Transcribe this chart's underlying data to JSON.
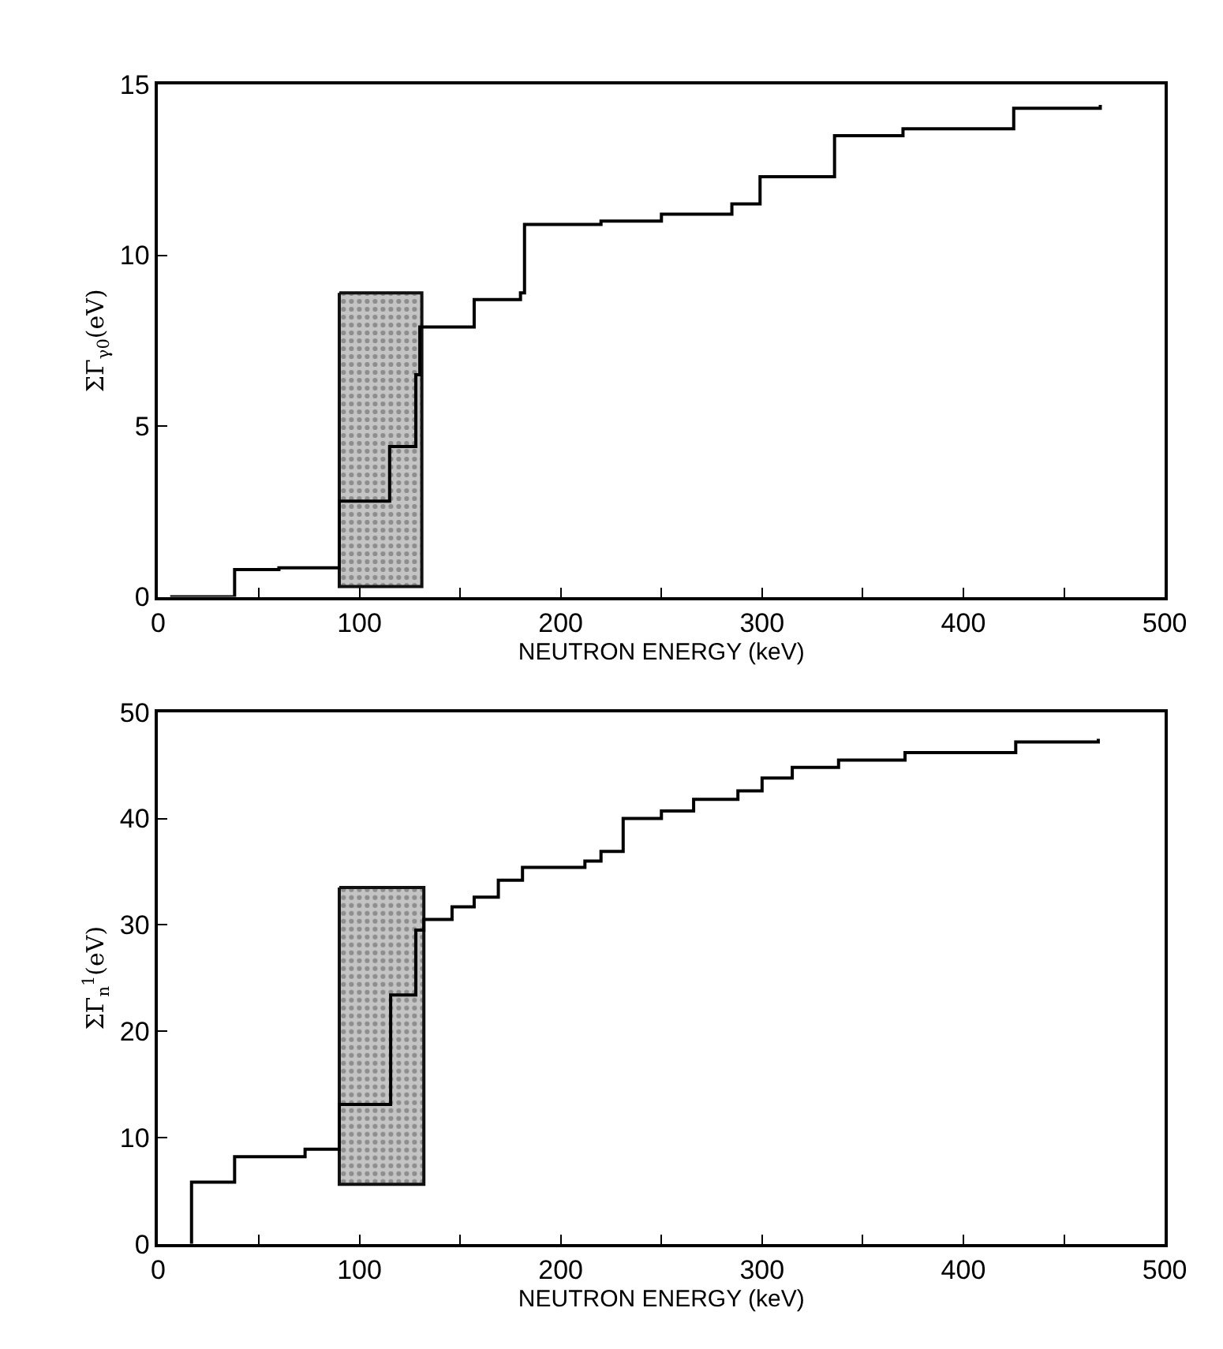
{
  "chart_data": [
    {
      "type": "step",
      "xlabel": "NEUTRON ENERGY (keV)",
      "ylabel": "ΣΓ$_{γ0}$(eV)",
      "xlim": [
        0,
        500
      ],
      "ylim": [
        0,
        15
      ],
      "xticks": [
        0,
        {
          "value": 50,
          "label": null
        },
        100,
        {
          "value": 150,
          "label": null
        },
        200,
        {
          "value": 250,
          "label": null
        },
        300,
        {
          "value": 350,
          "label": null
        },
        400,
        {
          "value": 450,
          "label": null
        },
        500
      ],
      "yticks": [
        0,
        5,
        10,
        15
      ],
      "marker": "none",
      "line_style": "solid",
      "series": [
        {
          "type": "area",
          "color": "#c4c4c4",
          "x": [
            90,
            131
          ],
          "values": [
            null,
            null
          ],
          "lower": [
            0.3,
            0.3
          ],
          "upper": [
            8.9,
            8.9
          ]
        },
        {
          "color": "#000000",
          "x": [
            6,
            38,
            60,
            90,
            115,
            128,
            130,
            157,
            180,
            182,
            220,
            250,
            285,
            299,
            336,
            370,
            425,
            468
          ],
          "values": [
            0,
            0.8,
            0.85,
            2.8,
            4.4,
            6.5,
            7.9,
            8.7,
            8.9,
            10.9,
            11.0,
            11.2,
            11.5,
            12.3,
            13.5,
            13.7,
            14.3,
            14.4
          ]
        }
      ]
    },
    {
      "type": "step",
      "xlabel": "NEUTRON ENERGY (keV)",
      "ylabel": "ΣΓ$_{n}$$^{1}$(eV)",
      "xlim": [
        0,
        500
      ],
      "ylim": [
        0,
        50
      ],
      "xticks": [
        0,
        {
          "value": 50,
          "label": null
        },
        100,
        {
          "value": 150,
          "label": null
        },
        200,
        {
          "value": 250,
          "label": null
        },
        300,
        {
          "value": 350,
          "label": null
        },
        400,
        {
          "value": 450,
          "label": null
        },
        500
      ],
      "yticks": [
        0,
        10,
        20,
        30,
        40,
        50
      ],
      "marker": "none",
      "line_style": "solid",
      "series": [
        {
          "type": "area",
          "color": "#c4c4c4",
          "x": [
            90,
            132
          ],
          "values": [
            null,
            null
          ],
          "lower": [
            5.6,
            5.6
          ],
          "upper": [
            33.5,
            33.5
          ]
        },
        {
          "color": "#000000",
          "x": [
            16.6,
            16.6,
            38,
            73,
            90,
            115.5,
            128,
            132,
            146,
            157,
            169,
            181,
            212,
            220,
            231,
            250,
            266,
            288,
            300,
            315,
            338,
            371,
            426,
            467
          ],
          "values": [
            0,
            5.8,
            8.2,
            8.9,
            13.1,
            23.4,
            29.5,
            30.5,
            31.7,
            32.6,
            34.2,
            35.4,
            36.0,
            36.9,
            40.0,
            40.7,
            41.8,
            42.6,
            43.8,
            44.8,
            45.5,
            46.2,
            47.2,
            47.5
          ]
        }
      ]
    }
  ]
}
